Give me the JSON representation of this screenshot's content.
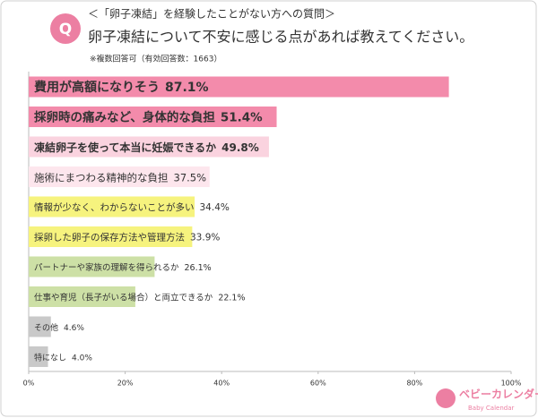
{
  "chart_data": {
    "type": "bar",
    "orientation": "horizontal",
    "badge": "Q",
    "title": "＜「卵子凍結」を経験したことがない方への質問＞",
    "subtitle": "卵子凍結について不安に感じる点があれば教えてください。",
    "note": "※複数回答可（有効回答数：1663）",
    "categories": [
      "費用が高額になりそう",
      "採卵時の痛みなど、身体的な負担",
      "凍結卵子を使って本当に妊娠できるか",
      "施術にまつわる精神的な負担",
      "情報が少なく、わからないことが多い",
      "採卵した卵子の保存方法や管理方法",
      "パートナーや家族の理解を得られるか",
      "仕事や育児（長子がいる場合）と両立できるか",
      "その他",
      "特になし"
    ],
    "values": [
      87.1,
      51.4,
      49.8,
      37.5,
      34.4,
      33.9,
      26.1,
      22.1,
      4.6,
      4.0
    ],
    "value_labels": [
      "87.1%",
      "51.4%",
      "49.8%",
      "37.5%",
      "34.4%",
      "33.9%",
      "26.1%",
      "22.1%",
      "4.6%",
      "4.0%"
    ],
    "colors": [
      "#f38bab",
      "#f38bab",
      "#fad3df",
      "#fde6ed",
      "#f6f37e",
      "#f6f37e",
      "#cde0a6",
      "#cde0a6",
      "#c9c9c9",
      "#c9c9c9"
    ],
    "xlim": [
      0,
      100
    ],
    "xticks": [
      {
        "value": 0,
        "label": "0%"
      },
      {
        "value": 20,
        "label": "20%"
      },
      {
        "value": 40,
        "label": "40%"
      },
      {
        "value": 60,
        "label": "60%"
      },
      {
        "value": 80,
        "label": "80%"
      },
      {
        "value": 100,
        "label": "100%"
      }
    ]
  },
  "logo": {
    "name": "ベビーカレンダー",
    "sub": "Baby Calendar"
  }
}
